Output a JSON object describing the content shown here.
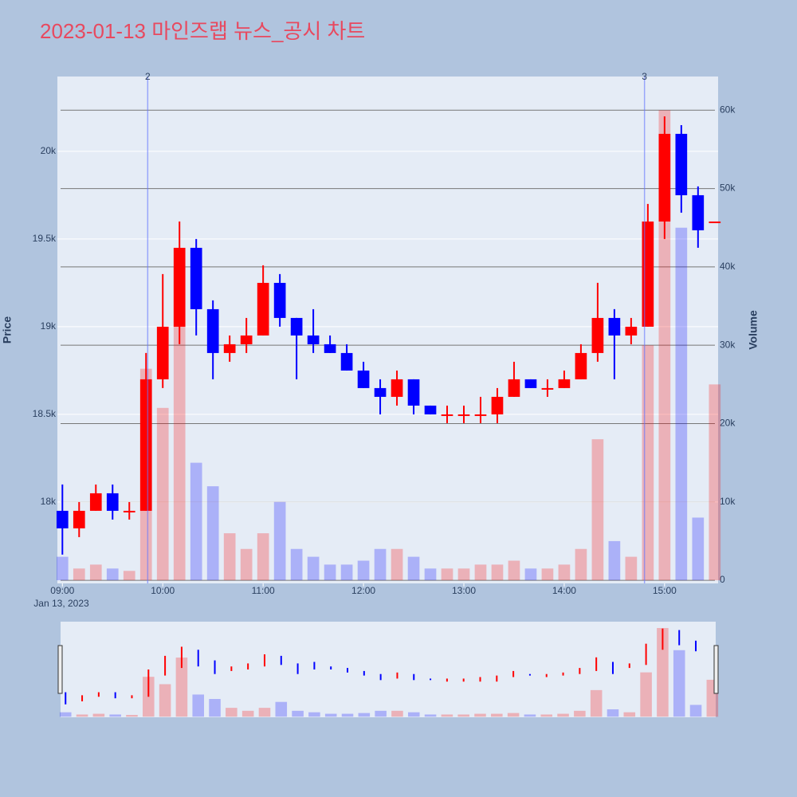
{
  "chart_data": {
    "type": "candlestick",
    "title": "2023-01-13 마인즈랩 뉴스_공시 차트",
    "y_label": "Price",
    "y2_label": "Volume",
    "x": [
      "2023-01-13 09:00",
      "2023-01-13 09:10",
      "2023-01-13 09:20",
      "2023-01-13 09:30",
      "2023-01-13 09:40",
      "2023-01-13 09:50",
      "2023-01-13 10:00",
      "2023-01-13 10:10",
      "2023-01-13 10:20",
      "2023-01-13 10:30",
      "2023-01-13 10:40",
      "2023-01-13 10:50",
      "2023-01-13 11:00",
      "2023-01-13 11:10",
      "2023-01-13 11:20",
      "2023-01-13 11:30",
      "2023-01-13 11:40",
      "2023-01-13 11:50",
      "2023-01-13 12:00",
      "2023-01-13 12:10",
      "2023-01-13 12:20",
      "2023-01-13 12:30",
      "2023-01-13 12:40",
      "2023-01-13 12:50",
      "2023-01-13 13:00",
      "2023-01-13 13:10",
      "2023-01-13 13:20",
      "2023-01-13 13:30",
      "2023-01-13 13:40",
      "2023-01-13 13:50",
      "2023-01-13 14:00",
      "2023-01-13 14:10",
      "2023-01-13 14:20",
      "2023-01-13 14:30",
      "2023-01-13 14:40",
      "2023-01-13 14:50",
      "2023-01-13 15:00",
      "2023-01-13 15:10",
      "2023-01-13 15:20",
      "2023-01-13 15:30"
    ],
    "open": [
      17950,
      17850,
      17950,
      18050,
      17950,
      17950,
      18700,
      19000,
      19450,
      19100,
      18850,
      18900,
      18950,
      19250,
      19050,
      18950,
      18900,
      18850,
      18750,
      18650,
      18600,
      18700,
      18550,
      18500,
      18500,
      18500,
      18500,
      18600,
      18700,
      18650,
      18650,
      18700,
      18850,
      19050,
      18950,
      19000,
      19600,
      20100,
      19750,
      19600
    ],
    "high": [
      18100,
      18000,
      18100,
      18100,
      18000,
      18850,
      19300,
      19600,
      19500,
      19150,
      18950,
      19050,
      19350,
      19300,
      19050,
      19100,
      18950,
      18900,
      18800,
      18700,
      18750,
      18700,
      18550,
      18550,
      18550,
      18600,
      18650,
      18800,
      18700,
      18700,
      18750,
      18900,
      19250,
      19100,
      19050,
      19700,
      20200,
      20150,
      19800,
      19600
    ],
    "low": [
      17700,
      17800,
      17950,
      17900,
      17900,
      17950,
      18650,
      18900,
      18950,
      18700,
      18800,
      18850,
      18950,
      19000,
      18700,
      18850,
      18850,
      18750,
      18650,
      18500,
      18550,
      18500,
      18500,
      18450,
      18450,
      18450,
      18450,
      18600,
      18650,
      18600,
      18650,
      18700,
      18800,
      18700,
      18900,
      19000,
      19500,
      19650,
      19450,
      19600
    ],
    "close": [
      17850,
      17950,
      18050,
      17950,
      17950,
      18700,
      19000,
      19450,
      19100,
      18850,
      18900,
      18950,
      19250,
      19050,
      18950,
      18900,
      18850,
      18750,
      18650,
      18600,
      18700,
      18550,
      18500,
      18500,
      18500,
      18500,
      18600,
      18700,
      18650,
      18650,
      18700,
      18850,
      19050,
      18950,
      19000,
      19600,
      20100,
      19750,
      19550,
      19600
    ],
    "volume": [
      3000,
      1500,
      2000,
      1500,
      1200,
      27000,
      22000,
      40000,
      15000,
      12000,
      6000,
      4000,
      6000,
      10000,
      4000,
      3000,
      2000,
      2000,
      2500,
      4000,
      4000,
      3000,
      1500,
      1500,
      1500,
      2000,
      2000,
      2500,
      1500,
      1500,
      2000,
      4000,
      18000,
      5000,
      3000,
      30000,
      60000,
      45000,
      8000,
      25000
    ],
    "up_color": "#ff0000",
    "down_color": "#0000ff",
    "xlim": [
      "2023-01-13 08:57",
      "2023-01-13 15:32"
    ],
    "xticks": [
      {
        "value": "2023-01-13 09:00",
        "label": "09:00"
      },
      {
        "value": "2023-01-13 10:00",
        "label": "10:00"
      },
      {
        "value": "2023-01-13 11:00",
        "label": "11:00"
      },
      {
        "value": "2023-01-13 12:00",
        "label": "12:00"
      },
      {
        "value": "2023-01-13 13:00",
        "label": "13:00"
      },
      {
        "value": "2023-01-13 14:00",
        "label": "14:00"
      },
      {
        "value": "2023-01-13 15:00",
        "label": "15:00"
      }
    ],
    "x_date_label": "Jan 13, 2023",
    "ylim": [
      17536,
      20427
    ],
    "yticks": [
      {
        "value": 18000,
        "label": "18k"
      },
      {
        "value": 18500,
        "label": "18.5k"
      },
      {
        "value": 19000,
        "label": "19k"
      },
      {
        "value": 19500,
        "label": "19.5k"
      },
      {
        "value": 20000,
        "label": "20k"
      }
    ],
    "y2lim": [
      -400,
      64300
    ],
    "y2ticks": [
      0,
      {
        "value": 10000,
        "label": "10k"
      },
      {
        "value": 20000,
        "label": "20k"
      },
      {
        "value": 30000,
        "label": "30k"
      },
      {
        "value": 40000,
        "label": "40k"
      },
      {
        "value": 50000,
        "label": "50k"
      },
      {
        "value": 60000,
        "label": "60k"
      }
    ],
    "annotations": [
      {
        "x": "2023-01-13 09:51",
        "text": "2"
      },
      {
        "x": "2023-01-13 14:48",
        "text": "3"
      }
    ]
  }
}
